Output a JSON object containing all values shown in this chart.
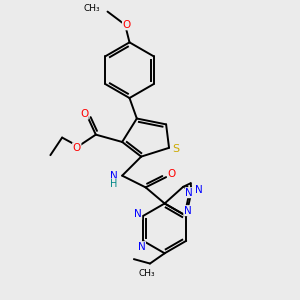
{
  "bg_color": "#ebebeb",
  "atom_colors": {
    "S": "#ccaa00",
    "N": "#0000ff",
    "O": "#ff0000",
    "C": "#000000",
    "H": "#008888"
  },
  "bond_color": "#000000",
  "bond_width": 1.4
}
